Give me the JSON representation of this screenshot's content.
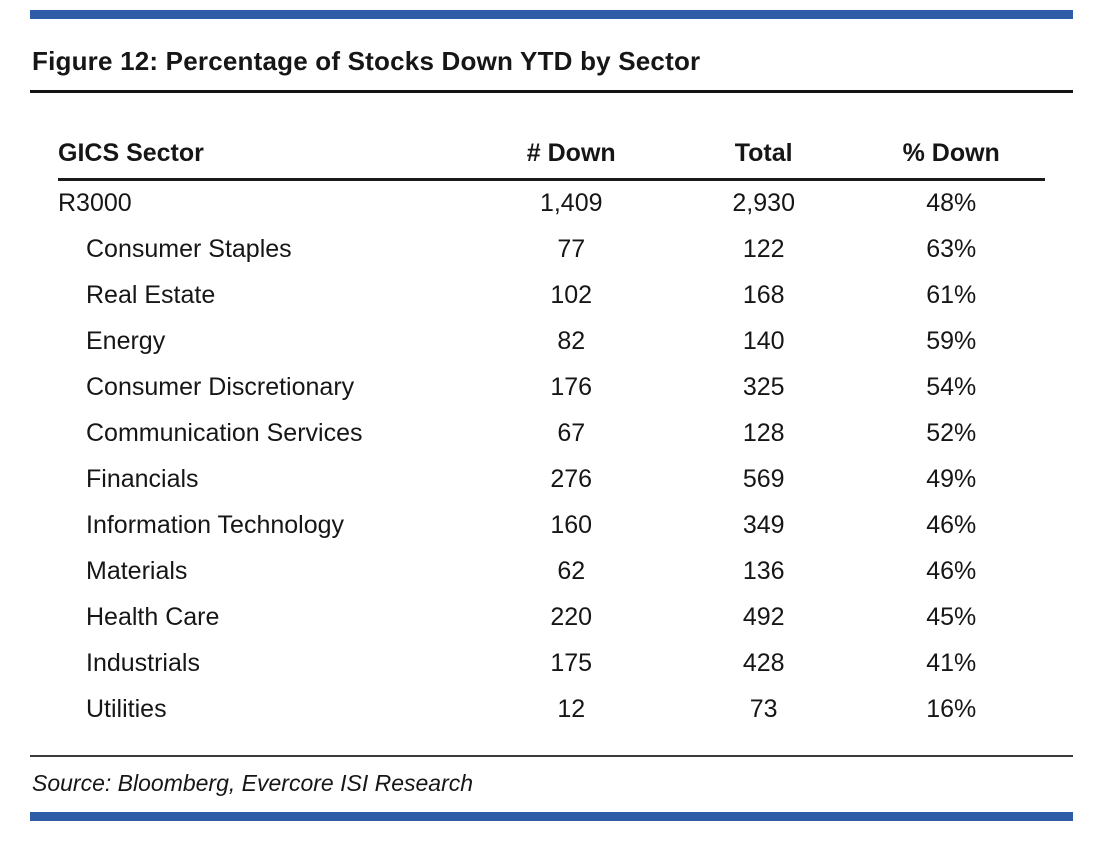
{
  "figure": {
    "title": "Figure 12: Percentage of Stocks Down YTD by Sector",
    "source": "Source: Bloomberg, Evercore ISI Research",
    "accent_color": "#2E5CA6"
  },
  "chart_data": {
    "type": "table",
    "title": "Figure 12: Percentage of Stocks Down YTD by Sector",
    "columns": [
      "GICS Sector",
      "# Down",
      "Total",
      "% Down"
    ],
    "rows": [
      {
        "sector": "R3000",
        "down": "1,409",
        "total": "2,930",
        "pct": "48%"
      },
      {
        "sector": "Consumer Staples",
        "down": "77",
        "total": "122",
        "pct": "63%"
      },
      {
        "sector": "Real Estate",
        "down": "102",
        "total": "168",
        "pct": "61%"
      },
      {
        "sector": "Energy",
        "down": "82",
        "total": "140",
        "pct": "59%"
      },
      {
        "sector": "Consumer Discretionary",
        "down": "176",
        "total": "325",
        "pct": "54%"
      },
      {
        "sector": "Communication Services",
        "down": "67",
        "total": "128",
        "pct": "52%"
      },
      {
        "sector": "Financials",
        "down": "276",
        "total": "569",
        "pct": "49%"
      },
      {
        "sector": "Information Technology",
        "down": "160",
        "total": "349",
        "pct": "46%"
      },
      {
        "sector": "Materials",
        "down": "62",
        "total": "136",
        "pct": "46%"
      },
      {
        "sector": "Health Care",
        "down": "220",
        "total": "492",
        "pct": "45%"
      },
      {
        "sector": "Industrials",
        "down": "175",
        "total": "428",
        "pct": "41%"
      },
      {
        "sector": "Utilities",
        "down": "12",
        "total": "73",
        "pct": "16%"
      }
    ],
    "source": "Source: Bloomberg, Evercore ISI Research"
  }
}
